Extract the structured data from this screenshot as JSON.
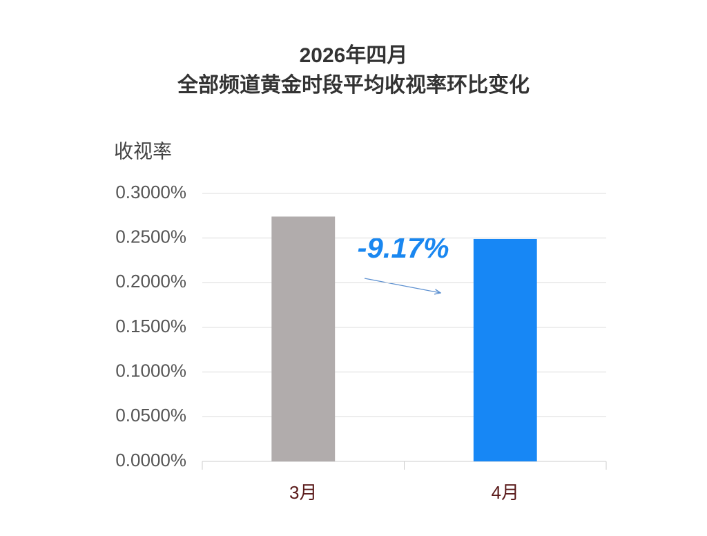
{
  "chart_data": {
    "type": "bar",
    "title": "2026年四月",
    "subtitle": "全部频道黄金时段平均收视率环比变化",
    "y_label": "收视率",
    "categories": [
      "3月",
      "4月"
    ],
    "values": [
      0.2741,
      0.249
    ],
    "colors": [
      "#b1acac",
      "#1787f5"
    ],
    "annotation": "-9.17%",
    "ylim": [
      0,
      0.3
    ],
    "yticks": [
      {
        "value": 0,
        "label": "0.0000%"
      },
      {
        "value": 0.05,
        "label": "0.0500%"
      },
      {
        "value": 0.1,
        "label": "0.1000%"
      },
      {
        "value": 0.15,
        "label": "0.1500%"
      },
      {
        "value": 0.2,
        "label": "0.2000%"
      },
      {
        "value": 0.25,
        "label": "0.2500%"
      },
      {
        "value": 0.3,
        "label": "0.3000%"
      }
    ],
    "grid": true
  }
}
